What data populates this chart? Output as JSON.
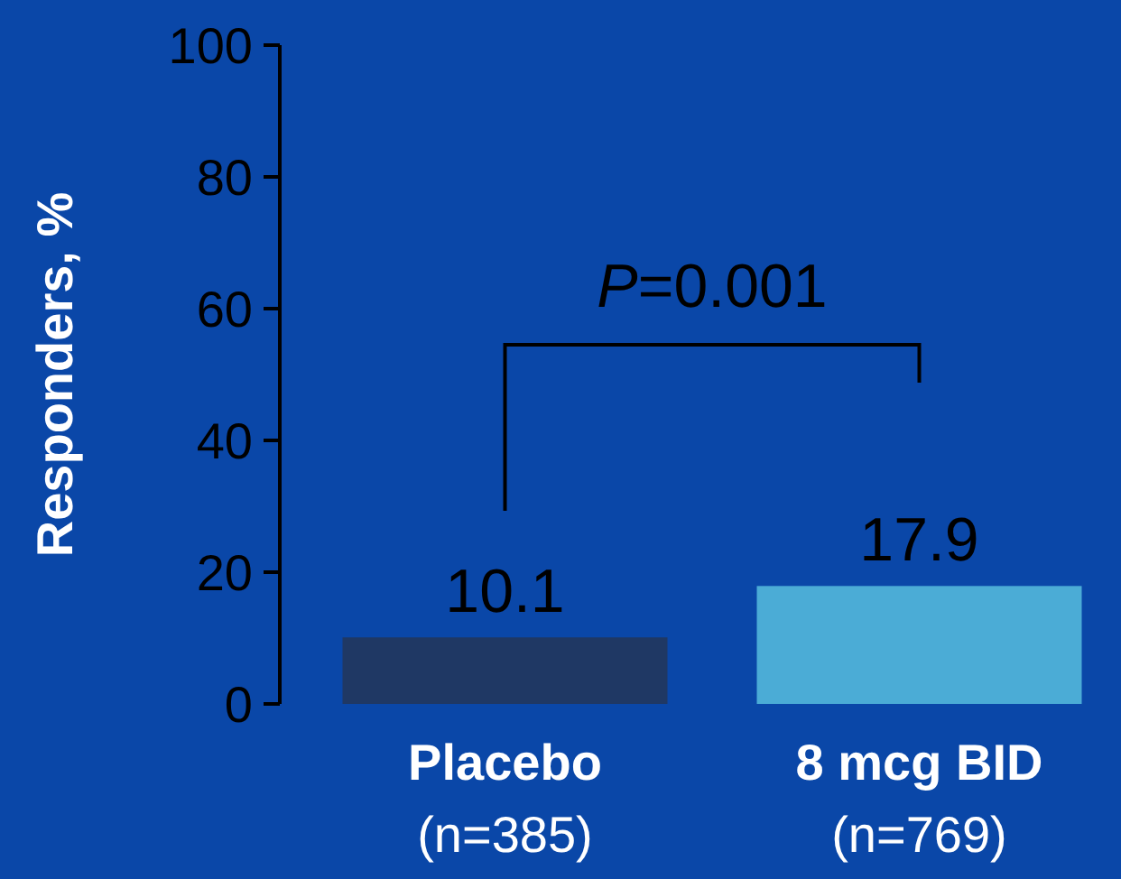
{
  "chart_data": {
    "type": "bar",
    "ylabel": "Responders, %",
    "categories": [
      "Placebo\n(n=385)",
      "8 mcg BID\n(n=769)"
    ],
    "values": [
      10.1,
      17.9
    ],
    "colors": [
      "#1f3864",
      "#4bacd6"
    ],
    "ylim": [
      0,
      100
    ],
    "yticks": [
      0,
      20,
      40,
      60,
      80,
      100
    ],
    "data_labels": true,
    "grid": false,
    "annotations": [
      "P=0.001"
    ]
  }
}
